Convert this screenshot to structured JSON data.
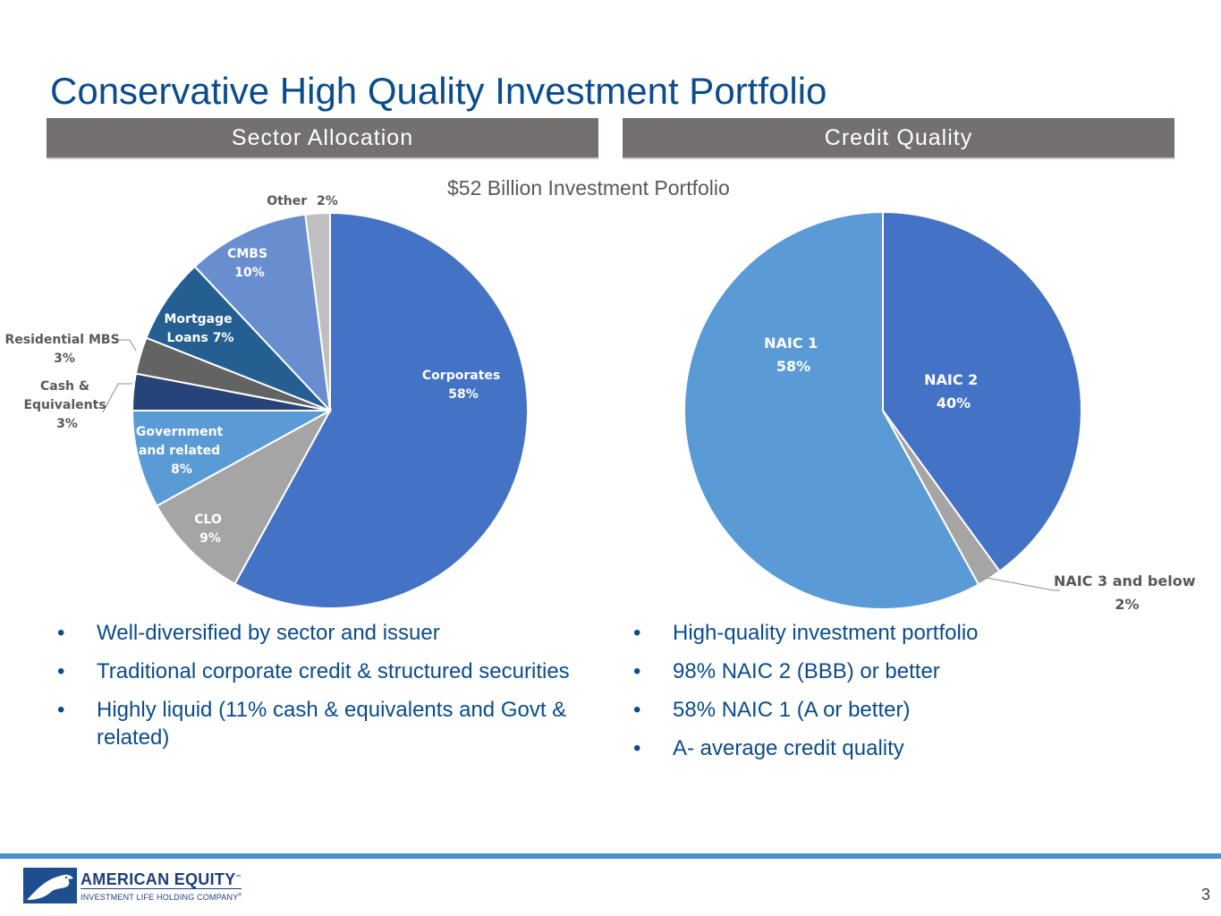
{
  "title": "Conservative High Quality Investment Portfolio",
  "headers": {
    "left": "Sector Allocation",
    "right": "Credit Quality"
  },
  "subtitle": "$52 Billion Investment Portfolio",
  "chart_data": [
    {
      "type": "pie",
      "title": "Sector Allocation",
      "slices": [
        {
          "label": "Corporates",
          "value": 58,
          "color": "#4472c4"
        },
        {
          "label": "CLO",
          "value": 9,
          "color": "#a5a5a5"
        },
        {
          "label": "Government and related",
          "value": 8,
          "color": "#5b9bd5"
        },
        {
          "label": "Cash & Equivalents",
          "value": 3,
          "color": "#264478"
        },
        {
          "label": "Residential MBS",
          "value": 3,
          "color": "#636363"
        },
        {
          "label": "Mortgage Loans",
          "value": 7,
          "color": "#255e91"
        },
        {
          "label": "CMBS",
          "value": 10,
          "color": "#698ed0"
        },
        {
          "label": "Other",
          "value": 2,
          "color": "#bfbfbf"
        }
      ],
      "labels": {
        "corporates": [
          "Corporates",
          "58%"
        ],
        "clo": [
          "CLO",
          "9%"
        ],
        "government": [
          "Government",
          "and related",
          "8%"
        ],
        "cash": [
          "Cash &",
          "Equivalents",
          "3%"
        ],
        "residential": [
          "Residential MBS",
          "3%"
        ],
        "mortgage": [
          "Mortgage",
          "Loans 7%"
        ],
        "cmbs": [
          "CMBS",
          "10%"
        ],
        "other": [
          "Other",
          "2%"
        ]
      }
    },
    {
      "type": "pie",
      "title": "Credit Quality",
      "slices": [
        {
          "label": "NAIC 2",
          "value": 40,
          "color": "#4472c4"
        },
        {
          "label": "NAIC 3 and below",
          "value": 2,
          "color": "#a5a5a5"
        },
        {
          "label": "NAIC 1",
          "value": 58,
          "color": "#5b9bd5"
        }
      ],
      "labels": {
        "naic2": [
          "NAIC 2",
          "40%"
        ],
        "naic3": [
          "NAIC 3 and below",
          "2%"
        ],
        "naic1": [
          "NAIC 1",
          "58%"
        ]
      }
    }
  ],
  "bullets_left": [
    "Well-diversified by sector and issuer",
    "Traditional corporate credit & structured securities",
    "Highly liquid (11% cash & equivalents and Govt & related)"
  ],
  "bullets_right": [
    "High-quality investment portfolio",
    "98% NAIC 2 (BBB) or better",
    "58% NAIC 1 (A or better)",
    "A- average credit quality"
  ],
  "logo": {
    "name": "AMERICAN EQUITY",
    "sub": "INVESTMENT LIFE HOLDING COMPANY",
    "mark": "™",
    "sub_mark": "®"
  },
  "page_number": "3"
}
